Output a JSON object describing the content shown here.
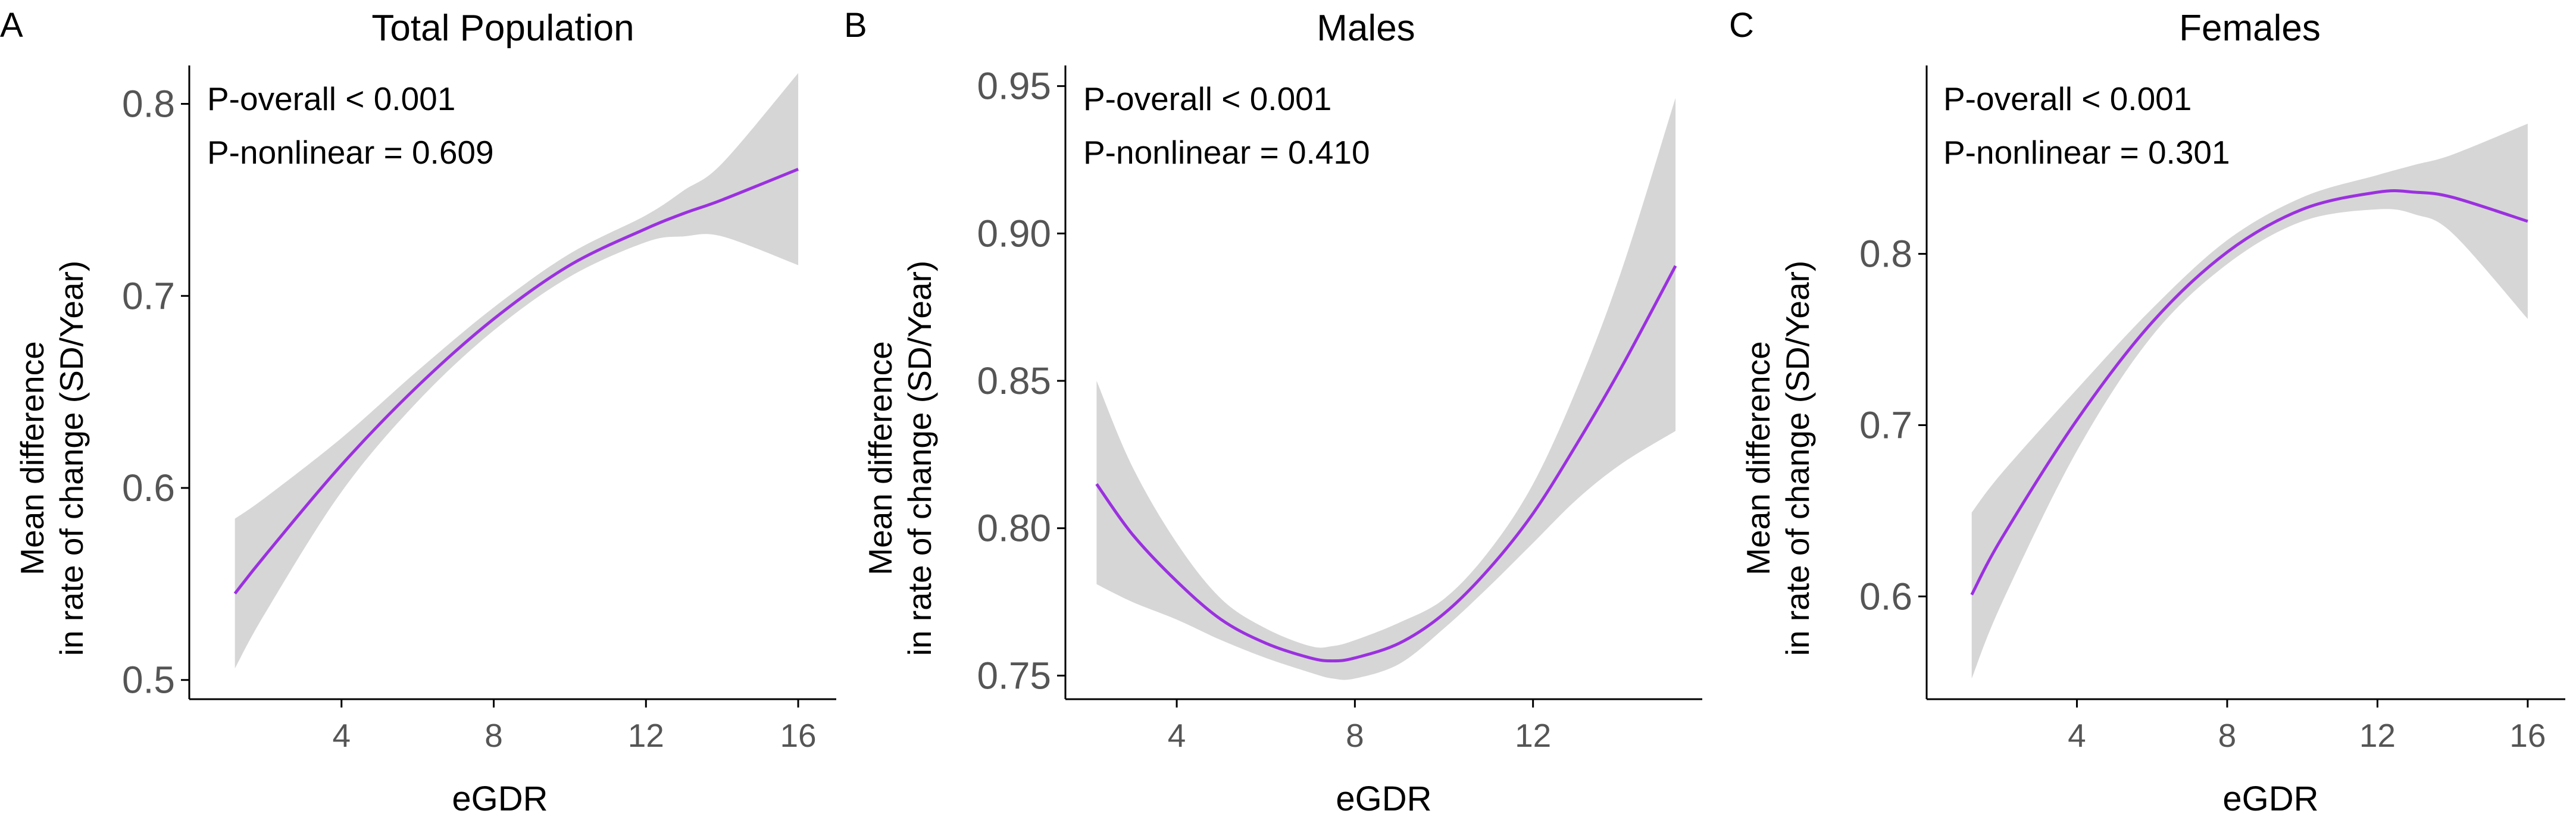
{
  "chart_data": [
    {
      "type": "line",
      "panel": "A",
      "title": "Total Population",
      "xlabel": "eGDR",
      "ylabel_lines": [
        "Mean difference",
        "in rate of change (SD/Year)"
      ],
      "annotations": [
        "P-overall < 0.001",
        "P-nonlinear = 0.609"
      ],
      "xlim": [
        0,
        17
      ],
      "ylim": [
        0.49,
        0.82
      ],
      "xticks": [
        4,
        8,
        12,
        16
      ],
      "xtick_labels": [
        "4",
        "8",
        "12",
        "16"
      ],
      "yticks": [
        0.5,
        0.6,
        0.7,
        0.8
      ],
      "ytick_labels": [
        "0.5",
        "0.6",
        "0.7",
        "0.8"
      ],
      "line_color": "#9b30e0",
      "band_color": "#d6d6d6",
      "x": [
        1.2,
        2,
        4,
        6,
        8,
        10,
        12,
        13,
        14,
        16
      ],
      "y": [
        0.545,
        0.565,
        0.612,
        0.653,
        0.688,
        0.716,
        0.735,
        0.743,
        0.75,
        0.766
      ],
      "lower": [
        0.506,
        0.535,
        0.598,
        0.645,
        0.682,
        0.71,
        0.728,
        0.731,
        0.731,
        0.716
      ],
      "upper": [
        0.584,
        0.595,
        0.626,
        0.661,
        0.694,
        0.722,
        0.742,
        0.755,
        0.769,
        0.816
      ]
    },
    {
      "type": "line",
      "panel": "B",
      "title": "Males",
      "xlabel": "eGDR",
      "ylabel_lines": [
        "Mean difference",
        "in rate of change (SD/Year)"
      ],
      "annotations": [
        "P-overall < 0.001",
        "P-nonlinear = 0.410"
      ],
      "xlim": [
        1.5,
        15.8
      ],
      "ylim": [
        0.742,
        0.957
      ],
      "xticks": [
        4,
        8,
        12
      ],
      "xtick_labels": [
        "4",
        "8",
        "12"
      ],
      "yticks": [
        0.75,
        0.8,
        0.85,
        0.9,
        0.95
      ],
      "ytick_labels": [
        "0.75",
        "0.80",
        "0.85",
        "0.90",
        "0.95"
      ],
      "line_color": "#9b30e0",
      "band_color": "#d6d6d6",
      "x": [
        2.2,
        3,
        4,
        5,
        6,
        7,
        7.5,
        8,
        9,
        10,
        11,
        12,
        13,
        14,
        15.2
      ],
      "y": [
        0.815,
        0.798,
        0.782,
        0.769,
        0.761,
        0.756,
        0.755,
        0.756,
        0.761,
        0.771,
        0.786,
        0.805,
        0.829,
        0.855,
        0.889
      ],
      "lower": [
        0.781,
        0.775,
        0.769,
        0.762,
        0.756,
        0.751,
        0.749,
        0.749,
        0.754,
        0.766,
        0.78,
        0.795,
        0.81,
        0.822,
        0.833
      ],
      "upper": [
        0.85,
        0.821,
        0.795,
        0.776,
        0.766,
        0.76,
        0.76,
        0.762,
        0.768,
        0.776,
        0.792,
        0.815,
        0.848,
        0.888,
        0.946
      ]
    },
    {
      "type": "line",
      "panel": "C",
      "title": "Females",
      "xlabel": "eGDR",
      "ylabel_lines": [
        "Mean difference",
        "in rate of change (SD/Year)"
      ],
      "annotations": [
        "P-overall < 0.001",
        "P-nonlinear = 0.301"
      ],
      "xlim": [
        0,
        17
      ],
      "ylim": [
        0.54,
        0.91
      ],
      "xticks": [
        4,
        8,
        12,
        16
      ],
      "xtick_labels": [
        "4",
        "8",
        "12",
        "16"
      ],
      "yticks": [
        0.6,
        0.7,
        0.8
      ],
      "ytick_labels": [
        "0.6",
        "0.7",
        "0.8"
      ],
      "line_color": "#9b30e0",
      "band_color": "#d6d6d6",
      "x": [
        1.2,
        2,
        4,
        6,
        8,
        10,
        12,
        13,
        14,
        16
      ],
      "y": [
        0.601,
        0.634,
        0.703,
        0.76,
        0.801,
        0.826,
        0.836,
        0.836,
        0.833,
        0.819
      ],
      "lower": [
        0.552,
        0.596,
        0.685,
        0.752,
        0.794,
        0.819,
        0.826,
        0.823,
        0.812,
        0.762
      ],
      "upper": [
        0.649,
        0.672,
        0.721,
        0.768,
        0.808,
        0.833,
        0.846,
        0.852,
        0.858,
        0.876
      ]
    }
  ]
}
